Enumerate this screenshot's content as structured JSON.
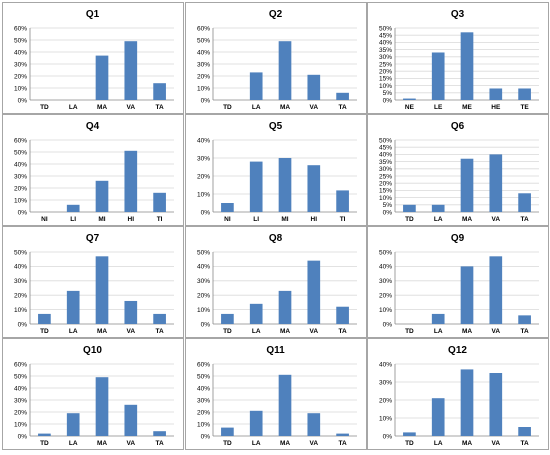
{
  "colors": {
    "bar": "#4f81bd",
    "grid": "#d9d9d9",
    "axis": "#888888",
    "border": "#a6a6a6"
  },
  "chart_data": [
    {
      "type": "bar",
      "title": "Q1",
      "categories": [
        "TD",
        "LA",
        "MA",
        "VA",
        "TA"
      ],
      "values": [
        0,
        0,
        37,
        49,
        14
      ],
      "ylim": [
        0,
        60
      ],
      "yticks": [
        "0%",
        "10%",
        "20%",
        "30%",
        "40%",
        "50%",
        "60%"
      ],
      "grid": true
    },
    {
      "type": "bar",
      "title": "Q2",
      "categories": [
        "TD",
        "LA",
        "MA",
        "VA",
        "TA"
      ],
      "values": [
        0,
        23,
        49,
        21,
        6
      ],
      "ylim": [
        0,
        60
      ],
      "yticks": [
        "0%",
        "10%",
        "20%",
        "30%",
        "40%",
        "50%",
        "60%"
      ],
      "grid": true
    },
    {
      "type": "bar",
      "title": "Q3",
      "categories": [
        "NE",
        "LE",
        "ME",
        "HE",
        "TE"
      ],
      "values": [
        1,
        33,
        47,
        8,
        8
      ],
      "ylim": [
        0,
        50
      ],
      "yticks": [
        "0%",
        "5%",
        "10%",
        "15%",
        "20%",
        "25%",
        "30%",
        "35%",
        "40%",
        "45%",
        "50%"
      ],
      "grid": true
    },
    {
      "type": "bar",
      "title": "Q4",
      "categories": [
        "NI",
        "LI",
        "MI",
        "HI",
        "TI"
      ],
      "values": [
        0,
        6,
        26,
        51,
        16
      ],
      "ylim": [
        0,
        60
      ],
      "yticks": [
        "0%",
        "10%",
        "20%",
        "30%",
        "40%",
        "50%",
        "60%"
      ],
      "grid": true
    },
    {
      "type": "bar",
      "title": "Q5",
      "categories": [
        "NI",
        "LI",
        "MI",
        "HI",
        "TI"
      ],
      "values": [
        5,
        28,
        30,
        26,
        12
      ],
      "ylim": [
        0,
        40
      ],
      "yticks": [
        "0%",
        "10%",
        "20%",
        "30%",
        "40%"
      ],
      "grid": true
    },
    {
      "type": "bar",
      "title": "Q6",
      "categories": [
        "TD",
        "LA",
        "MA",
        "VA",
        "TA"
      ],
      "values": [
        5,
        5,
        37,
        40,
        13
      ],
      "ylim": [
        0,
        50
      ],
      "yticks": [
        "0%",
        "5%",
        "10%",
        "15%",
        "20%",
        "25%",
        "30%",
        "35%",
        "40%",
        "45%",
        "50%"
      ],
      "grid": true
    },
    {
      "type": "bar",
      "title": "Q7",
      "categories": [
        "TD",
        "LA",
        "MA",
        "VA",
        "TA"
      ],
      "values": [
        7,
        23,
        47,
        16,
        7
      ],
      "ylim": [
        0,
        50
      ],
      "yticks": [
        "0%",
        "10%",
        "20%",
        "30%",
        "40%",
        "50%"
      ],
      "grid": true
    },
    {
      "type": "bar",
      "title": "Q8",
      "categories": [
        "TD",
        "LA",
        "MA",
        "VA",
        "TA"
      ],
      "values": [
        7,
        14,
        23,
        44,
        12
      ],
      "ylim": [
        0,
        50
      ],
      "yticks": [
        "0%",
        "10%",
        "20%",
        "30%",
        "40%",
        "50%"
      ],
      "grid": true
    },
    {
      "type": "bar",
      "title": "Q9",
      "categories": [
        "TD",
        "LA",
        "MA",
        "VA",
        "TA"
      ],
      "values": [
        0,
        7,
        40,
        47,
        6
      ],
      "ylim": [
        0,
        50
      ],
      "yticks": [
        "0%",
        "10%",
        "20%",
        "30%",
        "40%",
        "50%"
      ],
      "grid": true
    },
    {
      "type": "bar",
      "title": "Q10",
      "categories": [
        "TD",
        "LA",
        "MA",
        "VA",
        "TA"
      ],
      "values": [
        2,
        19,
        49,
        26,
        4
      ],
      "ylim": [
        0,
        60
      ],
      "yticks": [
        "0%",
        "10%",
        "20%",
        "30%",
        "40%",
        "50%",
        "60%"
      ],
      "grid": true
    },
    {
      "type": "bar",
      "title": "Q11",
      "categories": [
        "TD",
        "LA",
        "MA",
        "VA",
        "TA"
      ],
      "values": [
        7,
        21,
        51,
        19,
        2
      ],
      "ylim": [
        0,
        60
      ],
      "yticks": [
        "0%",
        "10%",
        "20%",
        "30%",
        "40%",
        "50%",
        "60%"
      ],
      "grid": true
    },
    {
      "type": "bar",
      "title": "Q12",
      "categories": [
        "TD",
        "LA",
        "MA",
        "VA",
        "TA"
      ],
      "values": [
        2,
        21,
        37,
        35,
        5
      ],
      "ylim": [
        0,
        40
      ],
      "yticks": [
        "0%",
        "10%",
        "20%",
        "30%",
        "40%"
      ],
      "grid": true
    }
  ]
}
